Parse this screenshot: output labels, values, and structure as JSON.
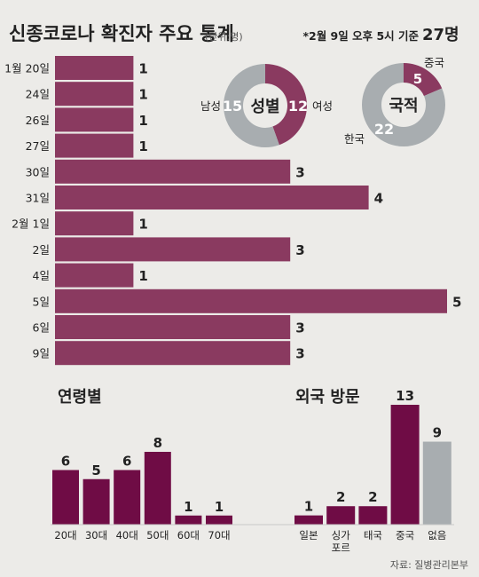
{
  "header": {
    "title": "신종코로나 확진자 주요 통계",
    "unit": "(단위:명)",
    "note_prefix": "*2월 9일 오후 5시 기준",
    "note_total": "27명"
  },
  "colors": {
    "accent": "#8a3a60",
    "accent_dark": "#6f0c45",
    "gray": "#a8adb0",
    "background": "#ecebe8"
  },
  "source": "자료: 질병관리본부",
  "chart_data": [
    {
      "type": "bar",
      "orientation": "horizontal",
      "categories": [
        "1월 20일",
        "24일",
        "26일",
        "27일",
        "30일",
        "31일",
        "2월 1일",
        "2일",
        "4일",
        "5일",
        "6일",
        "9일"
      ],
      "values": [
        1,
        1,
        1,
        1,
        3,
        4,
        1,
        3,
        1,
        5,
        3,
        3
      ],
      "xlim": [
        0,
        5
      ]
    },
    {
      "type": "pie",
      "title": "성별",
      "slices": [
        {
          "label": "여성",
          "value": 12
        },
        {
          "label": "남성",
          "value": 15
        }
      ]
    },
    {
      "type": "pie",
      "title": "국적",
      "slices": [
        {
          "label": "중국",
          "value": 5
        },
        {
          "label": "한국",
          "value": 22
        }
      ]
    },
    {
      "type": "bar",
      "title": "연령별",
      "categories": [
        "20대",
        "30대",
        "40대",
        "50대",
        "60대",
        "70대"
      ],
      "values": [
        6,
        5,
        6,
        8,
        1,
        1
      ]
    },
    {
      "type": "bar",
      "title": "외국 방문",
      "categories": [
        "일본",
        "싱가\n포르",
        "태국",
        "중국",
        "없음"
      ],
      "values": [
        1,
        2,
        2,
        13,
        9
      ]
    }
  ]
}
